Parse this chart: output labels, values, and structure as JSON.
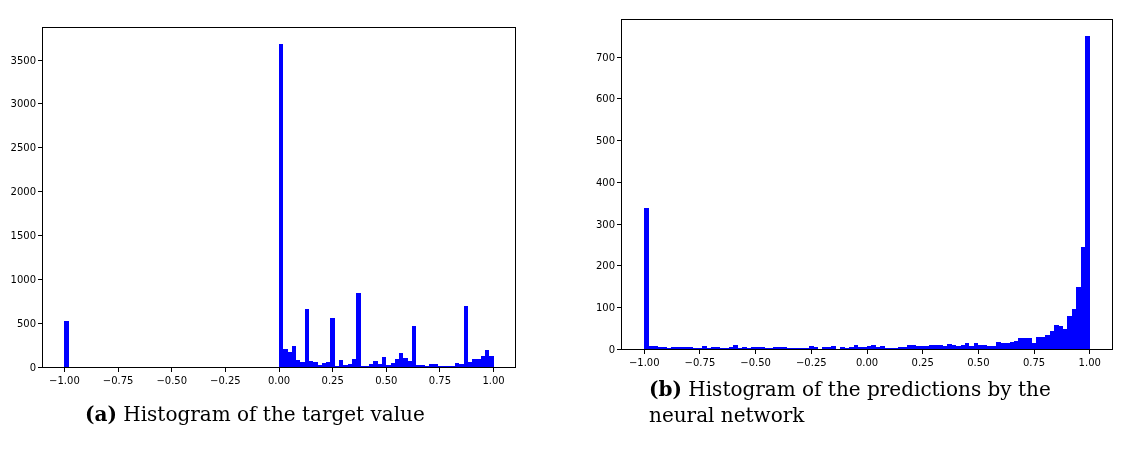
{
  "chart_data": [
    {
      "type": "histogram",
      "annotations": [
        "(a) Histogram of the target value"
      ],
      "color": "#0000ff",
      "bins": [
        -1,
        -0.98,
        -0.96,
        -0.94,
        -0.92,
        -0.9,
        -0.88,
        -0.86,
        -0.84,
        -0.82,
        -0.8,
        -0.78,
        -0.76,
        -0.74,
        -0.72,
        -0.7,
        -0.68,
        -0.66,
        -0.64,
        -0.62,
        -0.6,
        -0.58,
        -0.56,
        -0.54,
        -0.52,
        -0.5,
        -0.48,
        -0.46,
        -0.44,
        -0.42,
        -0.4,
        -0.38,
        -0.36,
        -0.34,
        -0.32,
        -0.3,
        -0.28,
        -0.26,
        -0.24,
        -0.22,
        -0.2,
        -0.18,
        -0.16,
        -0.14,
        -0.12,
        -0.1,
        -0.08,
        -0.06,
        -0.04,
        -0.02,
        0,
        0.02,
        0.04,
        0.06,
        0.08,
        0.1,
        0.12,
        0.14,
        0.16,
        0.18,
        0.2,
        0.22,
        0.24,
        0.26,
        0.28,
        0.3,
        0.32,
        0.34,
        0.36,
        0.38,
        0.4,
        0.42,
        0.44,
        0.46,
        0.48,
        0.5,
        0.52,
        0.54,
        0.56,
        0.58,
        0.6,
        0.62,
        0.64,
        0.66,
        0.68,
        0.7,
        0.72,
        0.74,
        0.76,
        0.78,
        0.8,
        0.82,
        0.84,
        0.86,
        0.88,
        0.9,
        0.92,
        0.94,
        0.96,
        0.98,
        1
      ],
      "values": [
        525,
        0,
        0,
        0,
        0,
        0,
        0,
        0,
        0,
        0,
        0,
        0,
        0,
        0,
        0,
        0,
        0,
        0,
        0,
        0,
        0,
        0,
        0,
        0,
        0,
        0,
        0,
        0,
        0,
        0,
        0,
        0,
        0,
        0,
        0,
        0,
        0,
        0,
        0,
        0,
        0,
        0,
        0,
        0,
        0,
        0,
        0,
        0,
        0,
        0,
        3690,
        211,
        173,
        245,
        87,
        57,
        667,
        68,
        60,
        23,
        45,
        57,
        565,
        19,
        83,
        23,
        38,
        94,
        852,
        11,
        19,
        38,
        68,
        38,
        120,
        23,
        49,
        98,
        166,
        109,
        79,
        475,
        26,
        26,
        11,
        38,
        41,
        19,
        19,
        19,
        11,
        45,
        38,
        697,
        60,
        94,
        98,
        132,
        200,
        136
      ],
      "xlim": [
        -1.1,
        1.1
      ],
      "ylim": [
        0,
        3870
      ],
      "xticks": [
        {
          "value": -1,
          "label": "−1.00"
        },
        {
          "value": -0.75,
          "label": "−0.75"
        },
        {
          "value": -0.5,
          "label": "−0.50"
        },
        {
          "value": -0.25,
          "label": "−0.25"
        },
        {
          "value": 0,
          "label": "0.00"
        },
        {
          "value": 0.25,
          "label": "0.25"
        },
        {
          "value": 0.5,
          "label": "0.50"
        },
        {
          "value": 0.75,
          "label": "0.75"
        },
        {
          "value": 1,
          "label": "1.00"
        }
      ],
      "yticks": [
        0,
        500,
        1000,
        1500,
        2000,
        2500,
        3000,
        3500
      ]
    },
    {
      "type": "histogram",
      "annotations": [
        "(b) Histogram of the predictions by the neural network"
      ],
      "color": "#0000ff",
      "bins": [
        -1,
        -0.98,
        -0.96,
        -0.94,
        -0.92,
        -0.9,
        -0.88,
        -0.86,
        -0.84,
        -0.82,
        -0.8,
        -0.78,
        -0.76,
        -0.74,
        -0.72,
        -0.7,
        -0.68,
        -0.66,
        -0.64,
        -0.62,
        -0.6,
        -0.58,
        -0.56,
        -0.54,
        -0.52,
        -0.5,
        -0.48,
        -0.46,
        -0.44,
        -0.42,
        -0.4,
        -0.38,
        -0.36,
        -0.34,
        -0.32,
        -0.3,
        -0.28,
        -0.26,
        -0.24,
        -0.22,
        -0.2,
        -0.18,
        -0.16,
        -0.14,
        -0.12,
        -0.1,
        -0.08,
        -0.06,
        -0.04,
        -0.02,
        0,
        0.02,
        0.04,
        0.06,
        0.08,
        0.1,
        0.12,
        0.14,
        0.16,
        0.18,
        0.2,
        0.22,
        0.24,
        0.26,
        0.28,
        0.3,
        0.32,
        0.34,
        0.36,
        0.38,
        0.4,
        0.42,
        0.44,
        0.46,
        0.48,
        0.5,
        0.52,
        0.54,
        0.56,
        0.58,
        0.6,
        0.62,
        0.64,
        0.66,
        0.68,
        0.7,
        0.72,
        0.74,
        0.76,
        0.78,
        0.8,
        0.82,
        0.84,
        0.86,
        0.88,
        0.9,
        0.92,
        0.94,
        0.96,
        0.98,
        1
      ],
      "values": [
        340,
        8,
        8,
        7,
        6,
        4,
        5,
        7,
        5,
        7,
        6,
        3,
        3,
        9,
        3,
        5,
        6,
        2,
        3,
        5,
        10,
        4,
        6,
        4,
        6,
        7,
        6,
        4,
        4,
        6,
        7,
        6,
        3,
        3,
        2,
        4,
        3,
        8,
        6,
        1,
        5,
        5,
        8,
        1,
        5,
        4,
        7,
        10,
        5,
        6,
        8,
        10,
        7,
        8,
        3,
        4,
        4,
        6,
        5,
        12,
        11,
        8,
        8,
        8,
        10,
        11,
        11,
        8,
        14,
        11,
        8,
        10,
        15,
        9,
        16,
        12,
        11,
        8,
        8,
        17,
        16,
        15,
        18,
        21,
        28,
        27,
        28,
        16,
        31,
        29,
        36,
        45,
        60,
        56,
        49,
        80,
        97,
        150,
        245,
        752
      ],
      "xlim": [
        -1.1,
        1.1
      ],
      "ylim": [
        0,
        790
      ],
      "xticks": [
        {
          "value": -1,
          "label": "−1.00"
        },
        {
          "value": -0.75,
          "label": "−0.75"
        },
        {
          "value": -0.5,
          "label": "−0.50"
        },
        {
          "value": -0.25,
          "label": "−0.25"
        },
        {
          "value": 0,
          "label": "0.00"
        },
        {
          "value": 0.25,
          "label": "0.25"
        },
        {
          "value": 0.5,
          "label": "0.50"
        },
        {
          "value": 0.75,
          "label": "0.75"
        },
        {
          "value": 1,
          "label": "1.00"
        }
      ],
      "yticks": [
        0,
        100,
        200,
        300,
        400,
        500,
        600,
        700
      ]
    }
  ]
}
